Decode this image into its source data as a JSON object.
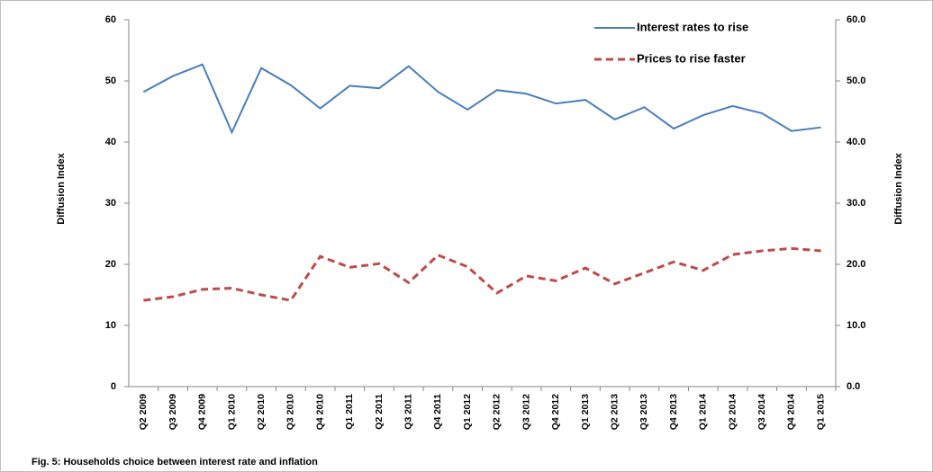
{
  "chart_data": {
    "type": "line",
    "caption": "Fig. 5:  Households  choice between interest rate and inflation",
    "y_label": "Diffusion Index",
    "y2_label": "Diffusion Index",
    "categories": [
      "Q2 2009",
      "Q3 2009",
      "Q4 2009",
      "Q1 2010",
      "Q2 2010",
      "Q3 2010",
      "Q4 2010",
      "Q1 2011",
      "Q2 2011",
      "Q3 2011",
      "Q4 2011",
      "Q1 2012",
      "Q2 2012",
      "Q3 2012",
      "Q4 2012",
      "Q1 2013",
      "Q2 2013",
      "Q3 2013",
      "Q4 2013",
      "Q1 2014",
      "Q2 2014",
      "Q3 2014",
      "Q4 2014",
      "Q1 2015"
    ],
    "series": [
      {
        "name": "Interest rates to rise",
        "color": "#4a7ebb",
        "dash": "solid",
        "values": [
          48.2,
          50.8,
          52.7,
          41.6,
          52.1,
          49.3,
          45.5,
          49.2,
          48.8,
          52.4,
          48.2,
          45.3,
          48.5,
          47.9,
          46.3,
          46.9,
          43.7,
          45.7,
          42.2,
          44.4,
          45.9,
          44.7,
          41.8,
          42.4
        ]
      },
      {
        "name": "Prices to rise faster",
        "color": "#be4b48",
        "dash": "dashed",
        "axis": "y2",
        "values": [
          14.1,
          14.7,
          15.9,
          16.1,
          15.0,
          14.1,
          21.3,
          19.5,
          20.1,
          17.0,
          21.5,
          19.6,
          15.3,
          18.1,
          17.3,
          19.4,
          16.8,
          18.6,
          20.4,
          19.0,
          21.6,
          22.2,
          22.6,
          22.2
        ]
      }
    ],
    "ylim": [
      0,
      60
    ],
    "yticks": [
      0,
      10,
      20,
      30,
      40,
      50,
      60
    ],
    "y2lim": [
      0,
      60
    ],
    "y2ticks": [
      {
        "value": 0,
        "label": "0.0"
      },
      {
        "value": 10,
        "label": "10.0"
      },
      {
        "value": 20,
        "label": "20.0"
      },
      {
        "value": 30,
        "label": "30.0"
      },
      {
        "value": 40,
        "label": "40.0"
      },
      {
        "value": 50,
        "label": "50.0"
      },
      {
        "value": 60,
        "label": "60.0"
      }
    ],
    "legend": "top-right",
    "grid": false
  }
}
